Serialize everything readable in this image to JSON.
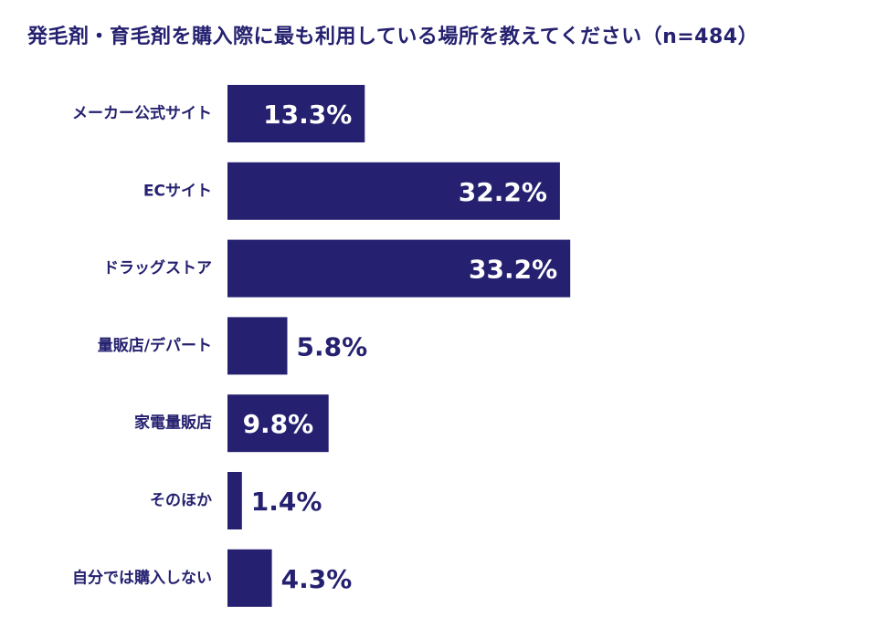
{
  "chart_data": {
    "type": "bar",
    "orientation": "horizontal",
    "title": "発毛剤・育毛剤を購入際に最も利用している場所を教えてください（n=484）",
    "categories": [
      "メーカー公式サイト",
      "ECサイト",
      "ドラッグストア",
      "量販店/デパート",
      "家電量販店",
      "そのほか",
      "自分では購入しない"
    ],
    "values": [
      13.3,
      32.2,
      33.2,
      5.8,
      9.8,
      1.4,
      4.3
    ],
    "value_labels": [
      "13.3%",
      "32.2%",
      "33.2%",
      "5.8%",
      "9.8%",
      "1.4%",
      "4.3%"
    ],
    "unit": "%",
    "xlim": [
      0,
      40
    ],
    "grid": false,
    "legend": "none",
    "colors": {
      "bar": "#252170",
      "label_inside": "#ffffff",
      "label_outside": "#252170",
      "text": "#252170"
    }
  }
}
